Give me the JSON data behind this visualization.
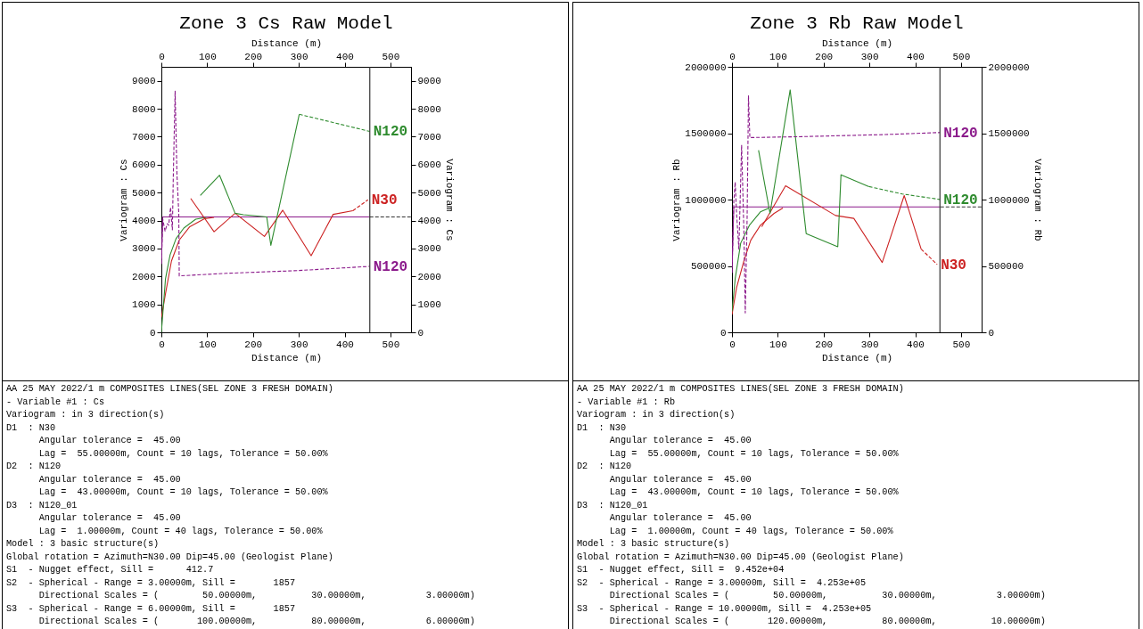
{
  "chart_data": [
    {
      "type": "line",
      "title": "Zone 3 Cs Raw Model",
      "xlabel": "Distance (m)",
      "x2label": "Distance (m)",
      "ylabel": "Variogram : Cs",
      "y2label": "Variogram : Cs",
      "xlim": [
        0,
        545
      ],
      "xticks": [
        0,
        100,
        200,
        300,
        400,
        500
      ],
      "x2lim": [
        0,
        545
      ],
      "x2ticks": [
        0,
        100,
        200,
        300,
        400,
        500
      ],
      "ylim": [
        0,
        9500
      ],
      "yticks": [
        0,
        1000,
        2000,
        3000,
        4000,
        5000,
        6000,
        7000,
        8000,
        9000
      ],
      "y2lim": [
        0,
        9500
      ],
      "y2ticks": [
        0,
        1000,
        2000,
        3000,
        4000,
        5000,
        6000,
        7000,
        8000,
        9000
      ],
      "series": [
        {
          "color": "#8b1a8b",
          "line_style": "solid",
          "x": [
            0,
            3,
            455
          ],
          "values": [
            2450,
            4130,
            4130
          ]
        },
        {
          "color": "#333333",
          "line_style": "dashed",
          "x": [
            455,
            545
          ],
          "values": [
            4130,
            4130
          ]
        },
        {
          "color": "#cc2222",
          "line_style": "solid",
          "x": [
            0,
            9,
            22,
            39,
            62,
            95,
            115
          ],
          "values": [
            530,
            1380,
            2550,
            3300,
            3780,
            4070,
            4110
          ]
        },
        {
          "color": "#2e8b2e",
          "line_style": "solid",
          "x": [
            0,
            9,
            19,
            32,
            49,
            75,
            98
          ],
          "values": [
            0,
            1920,
            2770,
            3350,
            3730,
            4050,
            4110
          ]
        },
        {
          "color": "#cc2222",
          "line_style": "solid",
          "x": [
            64,
            115,
            161,
            225,
            265,
            327,
            375,
            418
          ],
          "values": [
            4790,
            3600,
            4260,
            3430,
            4370,
            2740,
            4220,
            4350
          ]
        },
        {
          "name": "N30",
          "color": "#cc2222",
          "line_style": "dashed",
          "x": [
            418,
            451
          ],
          "values": [
            4350,
            4740
          ]
        },
        {
          "color": "#2e8b2e",
          "line_style": "solid",
          "x": [
            85,
            127,
            161,
            179,
            230,
            239,
            301
          ],
          "values": [
            4900,
            5620,
            4260,
            4210,
            4130,
            3110,
            7800
          ]
        },
        {
          "name": "N120",
          "color": "#2e8b2e",
          "line_style": "dashed",
          "x": [
            301,
            455
          ],
          "values": [
            7800,
            7190
          ]
        },
        {
          "name": "N120",
          "color": "#8b1a8b",
          "line_style": "dashed",
          "x": [
            0,
            3,
            8,
            13,
            16,
            20,
            24,
            26,
            30,
            34,
            38,
            39,
            141,
            299,
            455
          ],
          "values": [
            2450,
            4050,
            3620,
            3890,
            3830,
            4470,
            3670,
            5540,
            8630,
            5640,
            4260,
            2020,
            2110,
            2210,
            2360
          ]
        }
      ],
      "ref_lines": [
        {
          "axis": "x",
          "value": 455,
          "color": "#333333"
        }
      ],
      "annotations": [
        "AA 25 MAY 2022/1 m COMPOSITES LINES(SEL ZONE 3 FRESH DOMAIN)",
        "- Variable #1 : Cs",
        "Variogram : in 3 direction(s)",
        "D1  : N30",
        "      Angular tolerance =  45.00",
        "      Lag =  55.00000m, Count = 10 lags, Tolerance = 50.00%",
        "D2  : N120",
        "      Angular tolerance =  45.00",
        "      Lag =  43.00000m, Count = 10 lags, Tolerance = 50.00%",
        "D3  : N120_01",
        "      Angular tolerance =  45.00",
        "      Lag =  1.00000m, Count = 40 lags, Tolerance = 50.00%",
        "Model : 3 basic structure(s)",
        "Global rotation = Azimuth=N30.00 Dip=45.00 (Geologist Plane)",
        "S1  - Nugget effect, Sill =      412.7",
        "S2  - Spherical - Range = 3.00000m, Sill =       1857",
        "      Directional Scales = (        50.00000m,          30.00000m,           3.00000m)",
        "S3  - Spherical - Range = 6.00000m, Sill =       1857",
        "      Directional Scales = (       100.00000m,          80.00000m,           6.00000m)"
      ]
    },
    {
      "type": "line",
      "title": "Zone 3 Rb Raw Model",
      "xlabel": "Distance (m)",
      "x2label": "Distance (m)",
      "ylabel": "Variogram : Rb",
      "y2label": "Variogram : Rb",
      "xlim": [
        0,
        545
      ],
      "xticks": [
        0,
        100,
        200,
        300,
        400,
        500
      ],
      "x2lim": [
        0,
        545
      ],
      "x2ticks": [
        0,
        100,
        200,
        300,
        400,
        500
      ],
      "ylim": [
        0,
        2000000
      ],
      "yticks": [
        0,
        500000,
        1000000,
        1500000,
        2000000
      ],
      "y2lim": [
        0,
        2000000
      ],
      "y2ticks": [
        0,
        500000,
        1000000,
        1500000,
        2000000
      ],
      "series": [
        {
          "color": "#8b1a8b",
          "line_style": "solid",
          "x": [
            0,
            4,
            455
          ],
          "values": [
            448000,
            945000,
            945000
          ]
        },
        {
          "color": "#333333",
          "line_style": "dashed",
          "x": [
            455,
            545
          ],
          "values": [
            945000,
            945000
          ]
        },
        {
          "color": "#cc2222",
          "line_style": "solid",
          "x": [
            0,
            10,
            26,
            41,
            62,
            92,
            111
          ],
          "values": [
            134000,
            336000,
            538000,
            694000,
            806000,
            896000,
            936000
          ]
        },
        {
          "color": "#2e8b2e",
          "line_style": "solid",
          "x": [
            0,
            7,
            19,
            38,
            62,
            80
          ],
          "values": [
            157000,
            403000,
            672000,
            806000,
            907000,
            934000
          ]
        },
        {
          "color": "#cc2222",
          "line_style": "solid",
          "x": [
            65,
            117,
            226,
            266,
            328,
            376,
            413
          ],
          "values": [
            795000,
            1104000,
            880000,
            858000,
            526000,
            1030000,
            627000
          ]
        },
        {
          "name": "N30",
          "color": "#cc2222",
          "line_style": "dashed",
          "x": [
            413,
            448
          ],
          "values": [
            627000,
            511000
          ]
        },
        {
          "color": "#2e8b2e",
          "line_style": "solid",
          "x": [
            58,
            83,
            127,
            162,
            231,
            238,
            299
          ],
          "values": [
            1371000,
            896000,
            1826000,
            744000,
            645000,
            1187000,
            1098000
          ]
        },
        {
          "name": "N120",
          "color": "#2e8b2e",
          "line_style": "dashed",
          "x": [
            299,
            372,
            454
          ],
          "values": [
            1098000,
            1042000,
            1001000
          ]
        },
        {
          "name": "N120",
          "color": "#8b1a8b",
          "line_style": "dashed",
          "x": [
            0,
            4,
            7,
            10,
            15,
            21,
            26,
            29,
            33,
            36,
            39,
            153,
            336,
            454
          ],
          "values": [
            448000,
            986000,
            1131000,
            896000,
            627000,
            1411000,
            762000,
            146000,
            851000,
            1781000,
            1467000,
            1474000,
            1490000,
            1505000
          ]
        }
      ],
      "ref_lines": [
        {
          "axis": "x",
          "value": 454,
          "color": "#333333"
        }
      ],
      "annotations": [
        "AA 25 MAY 2022/1 m COMPOSITES LINES(SEL ZONE 3 FRESH DOMAIN)",
        "- Variable #1 : Rb",
        "Variogram : in 3 direction(s)",
        "D1  : N30",
        "      Angular tolerance =  45.00",
        "      Lag =  55.00000m, Count = 10 lags, Tolerance = 50.00%",
        "D2  : N120",
        "      Angular tolerance =  45.00",
        "      Lag =  43.00000m, Count = 10 lags, Tolerance = 50.00%",
        "D3  : N120_01",
        "      Angular tolerance =  45.00",
        "      Lag =  1.00000m, Count = 40 lags, Tolerance = 50.00%",
        "Model : 3 basic structure(s)",
        "Global rotation = Azimuth=N30.00 Dip=45.00 (Geologist Plane)",
        "S1  - Nugget effect, Sill =  9.452e+04",
        "S2  - Spherical - Range = 3.00000m, Sill =  4.253e+05",
        "      Directional Scales = (        50.00000m,          30.00000m,           3.00000m)",
        "S3  - Spherical - Range = 10.00000m, Sill =  4.253e+05",
        "      Directional Scales = (       120.00000m,          80.00000m,          10.00000m)"
      ]
    }
  ]
}
